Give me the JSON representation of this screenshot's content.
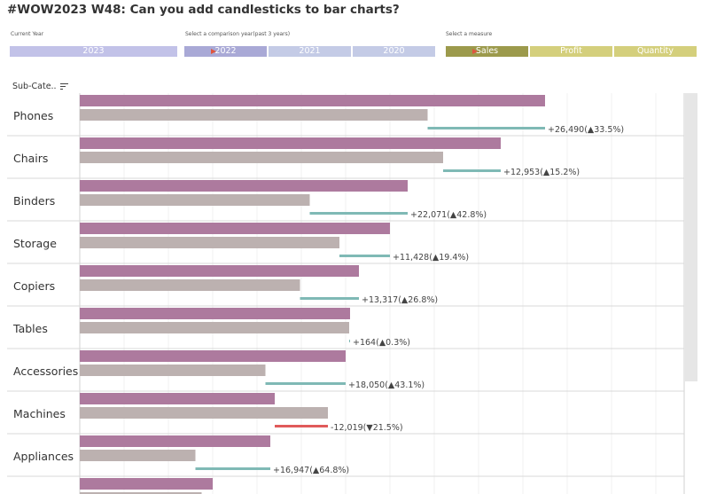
{
  "title": "#WOW2023 W48: Can you add candlesticks to bar charts?",
  "controls": {
    "current_year": {
      "label": "Current Year",
      "tiles": [
        {
          "text": "2023",
          "color": "#c2c2e8"
        }
      ]
    },
    "comparison_year": {
      "label": "Select a comparison year(past 3 years)",
      "tiles": [
        {
          "text": "2022",
          "color": "#a9a9d6",
          "selected": true
        },
        {
          "text": "2021",
          "color": "#c4cbe6"
        },
        {
          "text": "2020",
          "color": "#c4cbe6"
        }
      ]
    },
    "measure": {
      "label": "Select a measure",
      "tiles": [
        {
          "text": "Sales",
          "color": "#9c9a4c",
          "selected": true
        },
        {
          "text": "Profit",
          "color": "#d4cf7c"
        },
        {
          "text": "Quantity",
          "color": "#d4cf7c"
        }
      ]
    }
  },
  "header": {
    "label": "Sub-Cate..",
    "sort_icon": "sort-descending-icon"
  },
  "colors": {
    "current": "#ad7a9e",
    "comparison": "#bcb1b0",
    "increase": "#7fb9b5",
    "decrease": "#e05a5a"
  },
  "chart_data": {
    "type": "bar",
    "orientation": "horizontal",
    "measure": "Sales",
    "series": [
      {
        "name": "2023",
        "values": [
          105000,
          95000,
          74000,
          70000,
          63000,
          61000,
          60000,
          44000,
          43000,
          30000
        ]
      },
      {
        "name": "2022",
        "values": [
          78500,
          82000,
          51900,
          58600,
          49700,
          60800,
          41900,
          56000,
          26100,
          27500
        ]
      }
    ],
    "categories": [
      "Phones",
      "Chairs",
      "Binders",
      "Storage",
      "Copiers",
      "Tables",
      "Accessories",
      "Machines",
      "Appliances",
      ""
    ],
    "labels": [
      {
        "diff": "+26,490",
        "arrow": "▲",
        "pct": "33.5%",
        "dir": "up"
      },
      {
        "diff": "+12,953",
        "arrow": "▲",
        "pct": "15.2%",
        "dir": "up"
      },
      {
        "diff": "+22,071",
        "arrow": "▲",
        "pct": "42.8%",
        "dir": "up"
      },
      {
        "diff": "+11,428",
        "arrow": "▲",
        "pct": "19.4%",
        "dir": "up"
      },
      {
        "diff": "+13,317",
        "arrow": "▲",
        "pct": "26.8%",
        "dir": "up"
      },
      {
        "diff": "+164",
        "arrow": "▲",
        "pct": "0.3%",
        "dir": "up"
      },
      {
        "diff": "+18,050",
        "arrow": "▲",
        "pct": "43.1%",
        "dir": "up"
      },
      {
        "diff": "-12,019",
        "arrow": "▼",
        "pct": "21.5%",
        "dir": "down"
      },
      {
        "diff": "+16,947",
        "arrow": "▲",
        "pct": "64.8%",
        "dir": "up"
      }
    ],
    "xlim": [
      0,
      130000
    ],
    "grid": true
  }
}
